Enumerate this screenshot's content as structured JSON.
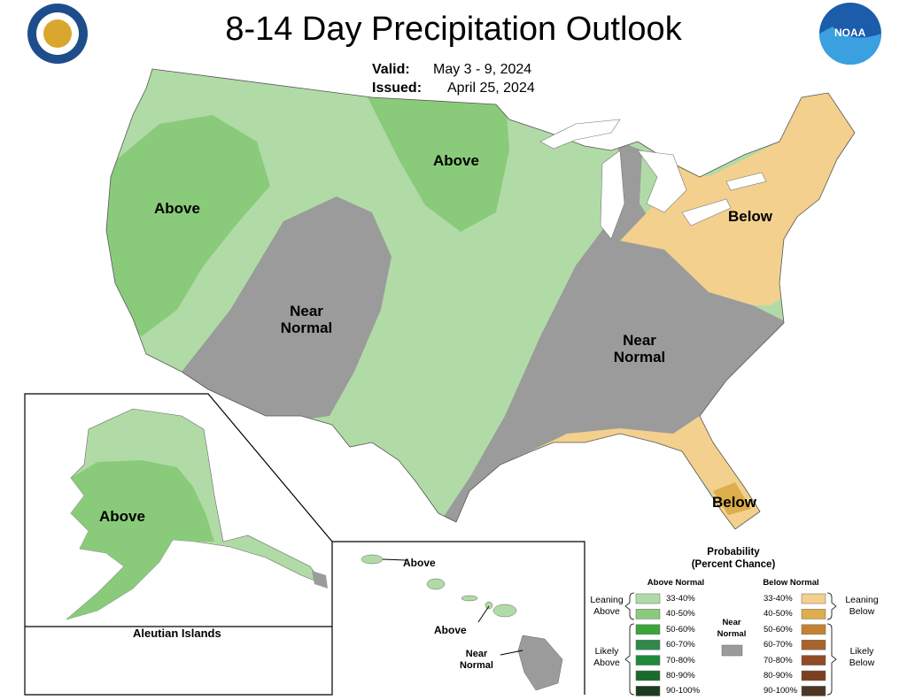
{
  "header": {
    "title": "8-14 Day Precipitation Outlook",
    "valid_label": "Valid:",
    "valid": "May 3 - 9, 2024",
    "issued_label": "Issued:",
    "issued": "April 25, 2024",
    "noaa_logo": "NOAA"
  },
  "map_labels": [
    "Above",
    "Above",
    "Below",
    "Near Normal",
    "Near Normal",
    "Below",
    "Above",
    "Above",
    "Above",
    "Near Normal"
  ],
  "inset": {
    "aleutian_title": "Aleutian Islands"
  },
  "legend": {
    "title": "Probability",
    "subtitle": "(Percent Chance)",
    "above_header": "Above Normal",
    "below_header": "Below Normal",
    "near_label": "Near Normal",
    "near_color": "#9b9b9b",
    "leaning_above": "Leaning Above",
    "likely_above": "Likely Above",
    "leaning_below": "Leaning Below",
    "likely_below": "Likely Below",
    "above_bins": [
      {
        "label": "33-40%",
        "color": "#b1dba6"
      },
      {
        "label": "40-50%",
        "color": "#8acb7b"
      },
      {
        "label": "50-60%",
        "color": "#3aa539"
      },
      {
        "label": "60-70%",
        "color": "#2e8a4b"
      },
      {
        "label": "70-80%",
        "color": "#1f8b3a"
      },
      {
        "label": "80-90%",
        "color": "#1a6b2c"
      },
      {
        "label": "90-100%",
        "color": "#1c3b20"
      }
    ],
    "below_bins": [
      {
        "label": "33-40%",
        "color": "#f3d08d"
      },
      {
        "label": "40-50%",
        "color": "#dcae4c"
      },
      {
        "label": "50-60%",
        "color": "#c48332"
      },
      {
        "label": "60-70%",
        "color": "#a8642a"
      },
      {
        "label": "70-80%",
        "color": "#904b24"
      },
      {
        "label": "80-90%",
        "color": "#7d3f1e"
      },
      {
        "label": "90-100%",
        "color": "#4e3622"
      }
    ]
  }
}
